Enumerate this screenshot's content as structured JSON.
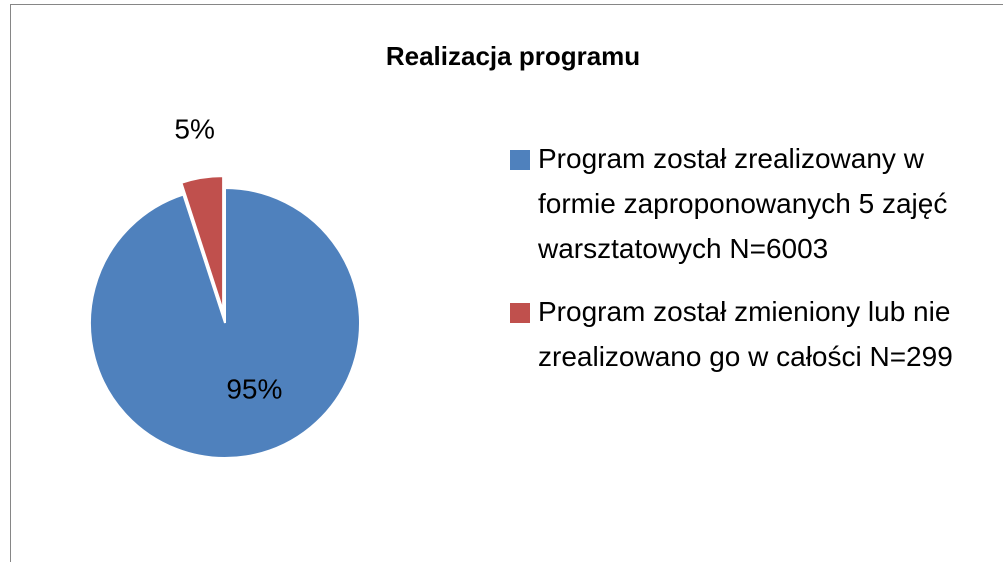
{
  "chart_data": {
    "type": "pie",
    "title": "Realizacja programu",
    "categories": [
      "Program został zrealizowany w formie zaproponowanych 5 zajęć warsztatowych N=6003",
      "Program został zmieniony lub nie zrealizowano go w całości N=299"
    ],
    "values": [
      95,
      5
    ],
    "value_labels": [
      "95%",
      "5%"
    ],
    "colors": [
      "#4f81bd",
      "#c0504d"
    ],
    "legend": "right"
  }
}
